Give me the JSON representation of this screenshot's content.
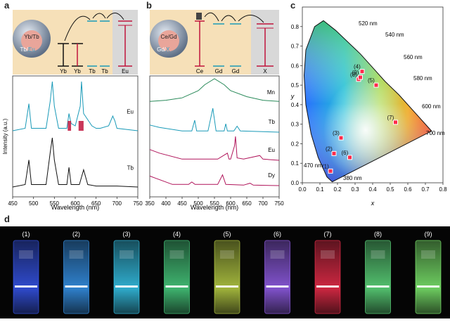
{
  "panels": {
    "a": {
      "letter": "a",
      "inset": {
        "shell_label": "Yb/Tb",
        "core_label_a": "Tb/",
        "core_label_b": "Eu",
        "levels": [
          "Yb",
          "Yb",
          "Tb",
          "Tb",
          "Eu"
        ]
      },
      "ylabel": "Intensity (a.u.)",
      "xlabel": "Wavelength (nm)",
      "xticks": [
        "450",
        "500",
        "550",
        "600",
        "650",
        "700",
        "750"
      ],
      "traces": [
        {
          "name": "Eu",
          "color": "#1a9ab8"
        },
        {
          "name": "Tb",
          "color": "#111111"
        }
      ]
    },
    "b": {
      "letter": "b",
      "inset": {
        "shell_label": "Ce/Gd",
        "core_label_a": "Gd/",
        "core_label_b": "X",
        "levels": [
          "Ce",
          "Gd",
          "Gd",
          "X"
        ]
      },
      "xlabel": "Wavelength (nm)",
      "xticks": [
        "350",
        "400",
        "450",
        "500",
        "550",
        "600",
        "650",
        "700",
        "750"
      ],
      "traces": [
        {
          "name": "Mn",
          "color": "#2a8a5a"
        },
        {
          "name": "Tb",
          "color": "#1a9ab8"
        },
        {
          "name": "Eu",
          "color": "#b0145a"
        },
        {
          "name": "Dy",
          "color": "#b0145a"
        }
      ]
    },
    "c": {
      "letter": "c",
      "xlabel": "x",
      "ylabel": "y",
      "xticks": [
        "0.0",
        "0.1",
        "0.2",
        "0.3",
        "0.4",
        "0.5",
        "0.6",
        "0.7",
        "0.8"
      ],
      "yticks": [
        "0.0",
        "0.1",
        "0.2",
        "0.3",
        "0.4",
        "0.5",
        "0.6",
        "0.7",
        "0.8"
      ],
      "locus_labels": [
        "520 nm",
        "540 nm",
        "560 nm",
        "580 nm",
        "600 nm",
        "700 nm",
        "470 nm",
        "380 nm"
      ]
    },
    "d": {
      "letter": "d",
      "vials": [
        {
          "label": "(1)",
          "glow": "#3a5cff"
        },
        {
          "label": "(2)",
          "glow": "#3aa0ff"
        },
        {
          "label": "(3)",
          "glow": "#3ad6ff"
        },
        {
          "label": "(4)",
          "glow": "#4ee08a"
        },
        {
          "label": "(5)",
          "glow": "#c8e04a"
        },
        {
          "label": "(6)",
          "glow": "#a066ff"
        },
        {
          "label": "(7)",
          "glow": "#ff3050"
        },
        {
          "label": "(8)",
          "glow": "#66ee88"
        },
        {
          "label": "(9)",
          "glow": "#88ff77"
        }
      ]
    }
  },
  "chart_data": [
    {
      "type": "line",
      "panel": "a",
      "xlabel": "Wavelength (nm)",
      "ylabel": "Intensity (a.u.)",
      "xlim": [
        450,
        750
      ],
      "series": [
        {
          "name": "Eu",
          "x": [
            450,
            480,
            489,
            495,
            530,
            540,
            545,
            550,
            560,
            580,
            585,
            590,
            600,
            612,
            615,
            620,
            640,
            650,
            660,
            680,
            690,
            695,
            700,
            750
          ],
          "y": [
            0,
            0.05,
            0.55,
            0.05,
            0.05,
            0.6,
            1.0,
            0.5,
            0.05,
            0.05,
            0.35,
            0.15,
            0.1,
            0.5,
            1.0,
            0.35,
            0.1,
            0.05,
            0.05,
            0.1,
            0.3,
            0.2,
            0.05,
            0
          ]
        },
        {
          "name": "Tb",
          "x": [
            450,
            480,
            489,
            495,
            530,
            540,
            545,
            550,
            560,
            580,
            585,
            590,
            610,
            620,
            630,
            650,
            700,
            750
          ],
          "y": [
            0,
            0.05,
            0.55,
            0.05,
            0.05,
            0.7,
            1.0,
            0.55,
            0.05,
            0.05,
            0.4,
            0.05,
            0.05,
            0.35,
            0.05,
            0.02,
            0.02,
            0
          ]
        }
      ]
    },
    {
      "type": "line",
      "panel": "b",
      "xlabel": "Wavelength (nm)",
      "xlim": [
        350,
        750
      ],
      "series": [
        {
          "name": "Mn",
          "x": [
            350,
            400,
            450,
            500,
            520,
            550,
            580,
            600,
            650,
            700,
            750
          ],
          "y": [
            0.05,
            0.1,
            0.2,
            0.5,
            0.75,
            1.0,
            0.75,
            0.5,
            0.25,
            0.1,
            0.05
          ]
        },
        {
          "name": "Tb",
          "x": [
            350,
            380,
            450,
            480,
            489,
            495,
            530,
            545,
            555,
            580,
            585,
            590,
            610,
            620,
            630,
            700,
            750
          ],
          "y": [
            0.3,
            0.2,
            0.05,
            0.05,
            0.5,
            0.05,
            0.05,
            1.0,
            0.05,
            0.05,
            0.35,
            0.05,
            0.05,
            0.25,
            0.05,
            0.02,
            0
          ]
        },
        {
          "name": "Eu",
          "x": [
            350,
            380,
            450,
            560,
            590,
            595,
            600,
            612,
            615,
            620,
            640,
            690,
            700,
            750
          ],
          "y": [
            0.45,
            0.3,
            0.05,
            0.05,
            0.3,
            0.05,
            0.05,
            0.6,
            1.0,
            0.1,
            0.05,
            0.2,
            0.05,
            0
          ]
        },
        {
          "name": "Dy",
          "x": [
            350,
            370,
            420,
            470,
            480,
            490,
            560,
            575,
            585,
            640,
            660,
            670,
            750
          ],
          "y": [
            0.4,
            0.3,
            0.05,
            0.05,
            0.15,
            0.05,
            0.05,
            0.45,
            0.05,
            0.02,
            0.1,
            0.02,
            0
          ]
        }
      ]
    },
    {
      "type": "scatter",
      "panel": "c",
      "xlabel": "x",
      "ylabel": "y",
      "xlim": [
        0.0,
        0.8
      ],
      "ylim": [
        0.0,
        0.9
      ],
      "points": [
        {
          "label": "(1)",
          "x": 0.16,
          "y": 0.06
        },
        {
          "label": "(2)",
          "x": 0.18,
          "y": 0.15
        },
        {
          "label": "(3)",
          "x": 0.22,
          "y": 0.23
        },
        {
          "label": "(4)",
          "x": 0.34,
          "y": 0.57
        },
        {
          "label": "(5)",
          "x": 0.42,
          "y": 0.5
        },
        {
          "label": "(6)",
          "x": 0.27,
          "y": 0.13
        },
        {
          "label": "(7)",
          "x": 0.53,
          "y": 0.31
        },
        {
          "label": "(8)",
          "x": 0.32,
          "y": 0.53
        },
        {
          "label": "(9)",
          "x": 0.33,
          "y": 0.54
        }
      ]
    }
  ]
}
